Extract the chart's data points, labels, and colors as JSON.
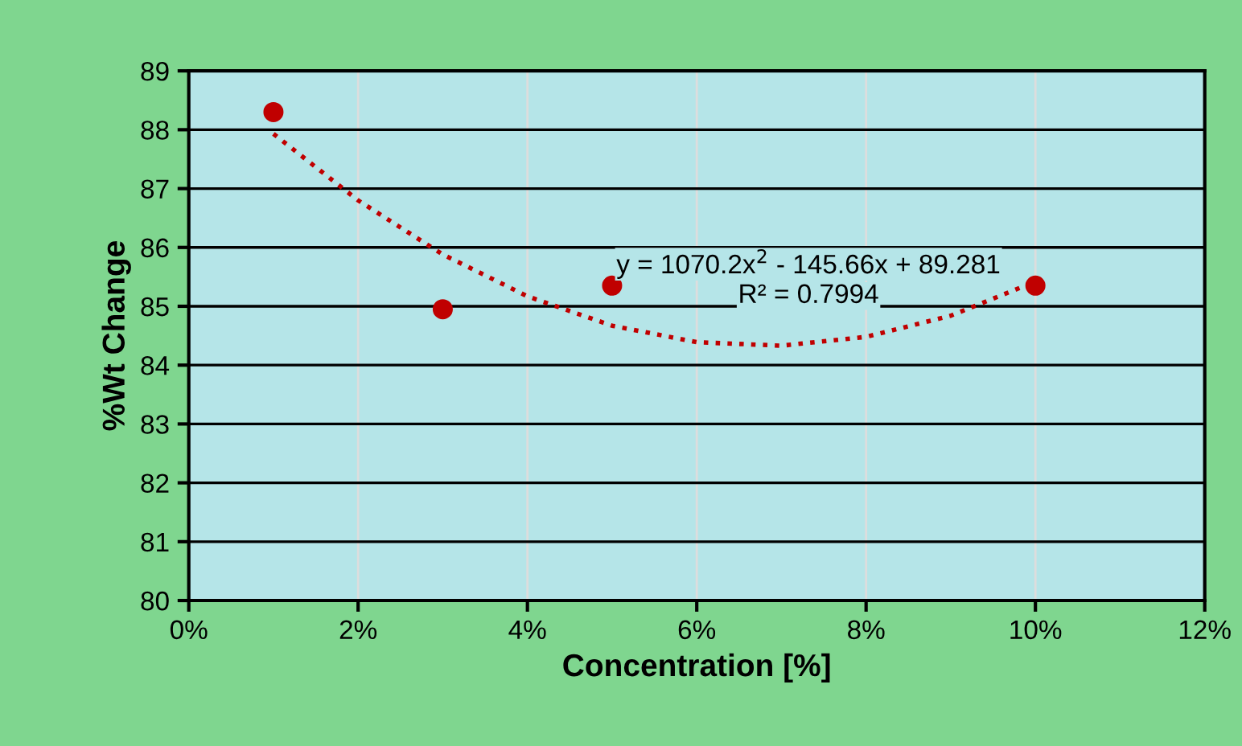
{
  "chart_data": {
    "type": "scatter",
    "xlabel": "Concentration [%]",
    "ylabel": "%Wt Change",
    "xlim": [
      0,
      12
    ],
    "ylim": [
      80,
      89
    ],
    "xticks": [
      {
        "value": 0,
        "label": "0%"
      },
      {
        "value": 2,
        "label": "2%"
      },
      {
        "value": 4,
        "label": "4%"
      },
      {
        "value": 6,
        "label": "6%"
      },
      {
        "value": 8,
        "label": "8%"
      },
      {
        "value": 10,
        "label": "10%"
      },
      {
        "value": 12,
        "label": "12%"
      }
    ],
    "yticks": [
      80,
      81,
      82,
      83,
      84,
      85,
      86,
      87,
      88,
      89
    ],
    "grid": true,
    "marker": "circle",
    "series": [
      {
        "color": "#c00000",
        "x": [
          1,
          3,
          5,
          10
        ],
        "values": [
          88.3,
          84.95,
          85.35,
          85.35
        ]
      },
      {
        "type": "line",
        "color": "#c00000",
        "line_style": "dotted",
        "marker": "none",
        "x": [
          1,
          2,
          3,
          4,
          5,
          6,
          7,
          8,
          9,
          10
        ],
        "values": [
          87.93,
          86.8,
          85.88,
          85.17,
          84.67,
          84.39,
          84.33,
          84.48,
          84.84,
          85.42
        ]
      }
    ],
    "annotations": [
      "y = 1070.2x$^{2}$ - 145.66x + 89.281",
      "R² = 0.7994"
    ]
  }
}
